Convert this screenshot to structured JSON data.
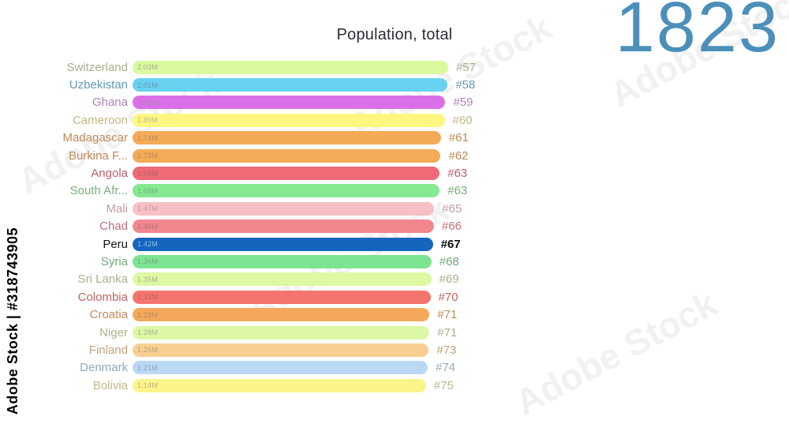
{
  "title": "Population, total",
  "year": "1823",
  "year_color": "#4b8fba",
  "watermark": {
    "side_text": "Adobe Stock | #318743905",
    "ghost_text": "Adobe Stock"
  },
  "chart_data": {
    "type": "bar",
    "orientation": "horizontal",
    "title": "Population, total",
    "unit": "millions of people",
    "value_suffix": "M",
    "x_axis_visible": false,
    "grid": false,
    "legend": false,
    "rows": [
      {
        "country": "Switzerland",
        "value": 2.03,
        "value_label": "2.03M",
        "rank": "#57",
        "bar_color": "#d9fa9e",
        "text_color": "#a9b190",
        "highlight": false
      },
      {
        "country": "Uzbekistan",
        "value": 2.01,
        "value_label": "2.01M",
        "rank": "#58",
        "bar_color": "#69d2f1",
        "text_color": "#6499b4",
        "highlight": false
      },
      {
        "country": "Ghana",
        "value": 1.92,
        "value_label": "1.92M",
        "rank": "#59",
        "bar_color": "#da70e8",
        "text_color": "#b77fc0",
        "highlight": false
      },
      {
        "country": "Cameroon",
        "value": 1.89,
        "value_label": "1.89M",
        "rank": "#60",
        "bar_color": "#fdf77f",
        "text_color": "#c2b788",
        "highlight": false
      },
      {
        "country": "Madagascar",
        "value": 1.74,
        "value_label": "1.74M",
        "rank": "#61",
        "bar_color": "#f4ab57",
        "text_color": "#c08a58",
        "highlight": false
      },
      {
        "country": "Burkina F...",
        "value": 1.73,
        "value_label": "1.73M",
        "rank": "#62",
        "bar_color": "#f4ab57",
        "text_color": "#c08a58",
        "highlight": false
      },
      {
        "country": "Angola",
        "value": 1.69,
        "value_label": "1.69M",
        "rank": "#63",
        "bar_color": "#ee6a76",
        "text_color": "#b86169",
        "highlight": false
      },
      {
        "country": "South Afr...",
        "value": 1.69,
        "value_label": "1.69M",
        "rank": "#63",
        "bar_color": "#85e992",
        "text_color": "#76b07c",
        "highlight": false
      },
      {
        "country": "Mali",
        "value": 1.47,
        "value_label": "1.47M",
        "rank": "#65",
        "bar_color": "#f7c0c6",
        "text_color": "#c49ba0",
        "highlight": false
      },
      {
        "country": "Chad",
        "value": 1.46,
        "value_label": "1.46M",
        "rank": "#66",
        "bar_color": "#f1868f",
        "text_color": "#bc7078",
        "highlight": false
      },
      {
        "country": "Peru",
        "value": 1.42,
        "value_label": "1.42M",
        "rank": "#67",
        "bar_color": "#1565be",
        "text_color": "#151515",
        "value_text_color": "#8fbce8",
        "rank_color": "#0d0d0d",
        "highlight": true
      },
      {
        "country": "Syria",
        "value": 1.36,
        "value_label": "1.36M",
        "rank": "#68",
        "bar_color": "#7de492",
        "text_color": "#72ab79",
        "highlight": false
      },
      {
        "country": "Sri Lanka",
        "value": 1.35,
        "value_label": "1.35M",
        "rank": "#69",
        "bar_color": "#def8a3",
        "text_color": "#aab28c",
        "highlight": false
      },
      {
        "country": "Colombia",
        "value": 1.32,
        "value_label": "1.32M",
        "rank": "#70",
        "bar_color": "#f4756d",
        "text_color": "#bb6560",
        "highlight": false
      },
      {
        "country": "Croatia",
        "value": 1.28,
        "value_label": "1.28M",
        "rank": "#71",
        "bar_color": "#f3a85b",
        "text_color": "#c08a58",
        "highlight": false
      },
      {
        "country": "Niger",
        "value": 1.28,
        "value_label": "1.28M",
        "rank": "#71",
        "bar_color": "#dcf8a4",
        "text_color": "#aab28c",
        "highlight": false
      },
      {
        "country": "Finland",
        "value": 1.25,
        "value_label": "1.25M",
        "rank": "#73",
        "bar_color": "#f8cf92",
        "text_color": "#c2a277",
        "highlight": false
      },
      {
        "country": "Denmark",
        "value": 1.21,
        "value_label": "1.21M",
        "rank": "#74",
        "bar_color": "#b9d8f3",
        "text_color": "#90a9c0",
        "highlight": false
      },
      {
        "country": "Bolivia",
        "value": 1.14,
        "value_label": "1.14M",
        "rank": "#75",
        "bar_color": "#fbf48a",
        "text_color": "#c2b788",
        "highlight": false
      }
    ]
  }
}
